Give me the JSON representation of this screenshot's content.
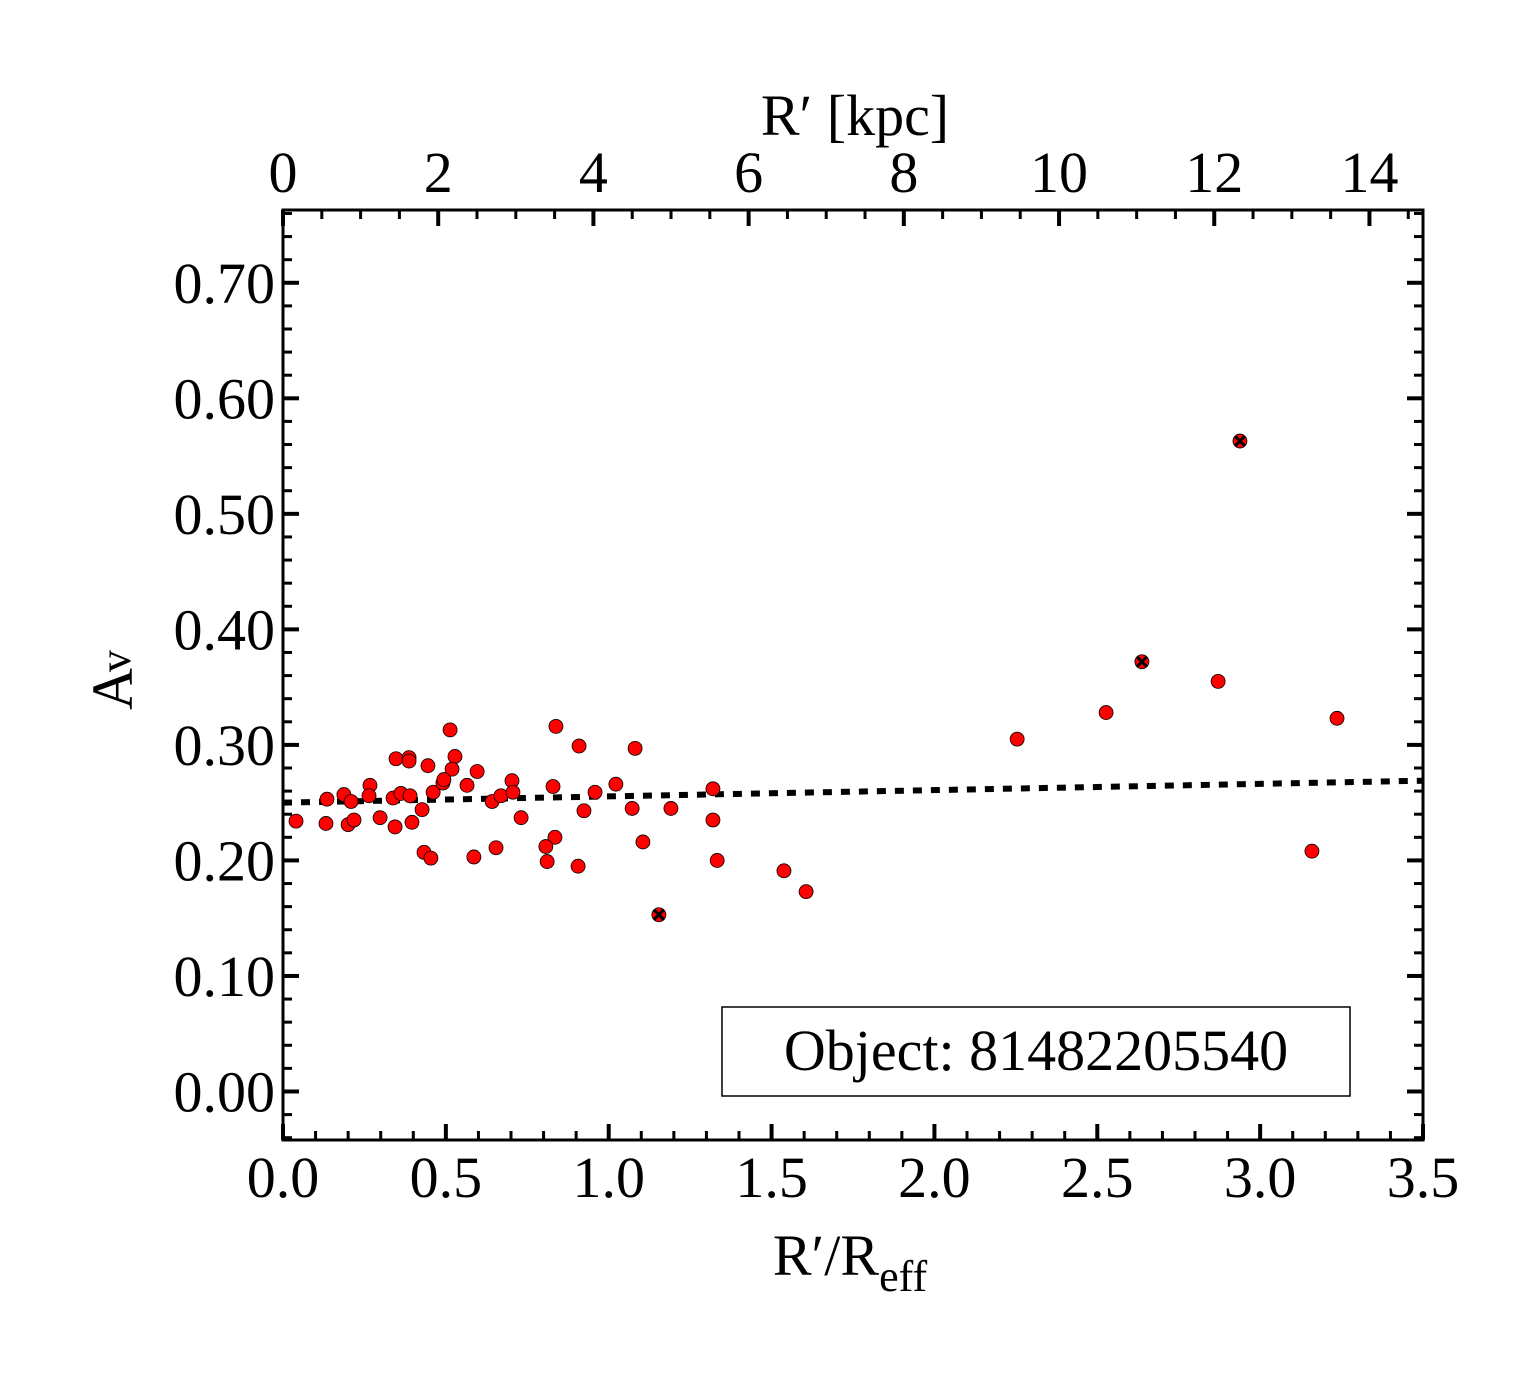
{
  "chart_data": {
    "type": "scatter",
    "xlabel": "R′/R",
    "xlabel_sub": "eff",
    "ylabel": "A",
    "ylabel_sub": "v",
    "top_xlabel": "R′ [kpc]",
    "xlim": [
      0.0,
      3.5
    ],
    "ylim": [
      -0.042,
      0.763
    ],
    "top_xlim": [
      0,
      14.69
    ],
    "x_ticks": [
      "0.0",
      "0.5",
      "1.0",
      "1.5",
      "2.0",
      "2.5",
      "3.0",
      "3.5"
    ],
    "x_tick_values": [
      0,
      0.5,
      1.0,
      1.5,
      2.0,
      2.5,
      3.0,
      3.5
    ],
    "y_ticks": [
      "0.00",
      "0.10",
      "0.20",
      "0.30",
      "0.40",
      "0.50",
      "0.60",
      "0.70"
    ],
    "y_tick_values": [
      0,
      0.1,
      0.2,
      0.3,
      0.4,
      0.5,
      0.6,
      0.7
    ],
    "top_x_ticks": [
      "0",
      "2",
      "4",
      "6",
      "8",
      "10",
      "12",
      "14"
    ],
    "top_x_tick_values": [
      0,
      2,
      4,
      6,
      8,
      10,
      12,
      14
    ],
    "grid": false,
    "annotation": "Object: 81482205540",
    "annotation_position": "bottom-right",
    "point_color": "#ff0000",
    "points": [
      [
        0.04,
        0.234
      ],
      [
        0.135,
        0.253
      ],
      [
        0.132,
        0.232
      ],
      [
        0.187,
        0.257
      ],
      [
        0.209,
        0.251
      ],
      [
        0.2,
        0.231
      ],
      [
        0.218,
        0.235
      ],
      [
        0.267,
        0.265
      ],
      [
        0.264,
        0.256
      ],
      [
        0.298,
        0.237
      ],
      [
        0.347,
        0.288
      ],
      [
        0.387,
        0.289
      ],
      [
        0.387,
        0.286
      ],
      [
        0.338,
        0.254
      ],
      [
        0.362,
        0.258
      ],
      [
        0.39,
        0.256
      ],
      [
        0.344,
        0.229
      ],
      [
        0.396,
        0.233
      ],
      [
        0.445,
        0.282
      ],
      [
        0.427,
        0.244
      ],
      [
        0.461,
        0.259
      ],
      [
        0.433,
        0.207
      ],
      [
        0.454,
        0.202
      ],
      [
        0.513,
        0.313
      ],
      [
        0.528,
        0.29
      ],
      [
        0.519,
        0.279
      ],
      [
        0.491,
        0.267
      ],
      [
        0.494,
        0.27
      ],
      [
        0.565,
        0.265
      ],
      [
        0.596,
        0.277
      ],
      [
        0.586,
        0.203
      ],
      [
        0.642,
        0.251
      ],
      [
        0.669,
        0.256
      ],
      [
        0.703,
        0.269
      ],
      [
        0.706,
        0.259
      ],
      [
        0.654,
        0.211
      ],
      [
        0.731,
        0.237
      ],
      [
        0.838,
        0.316
      ],
      [
        0.909,
        0.299
      ],
      [
        0.829,
        0.264
      ],
      [
        0.958,
        0.259
      ],
      [
        1.022,
        0.266
      ],
      [
        0.924,
        0.243
      ],
      [
        1.081,
        0.297
      ],
      [
        1.072,
        0.245
      ],
      [
        1.191,
        0.245
      ],
      [
        1.105,
        0.216
      ],
      [
        0.835,
        0.22
      ],
      [
        0.807,
        0.212
      ],
      [
        0.811,
        0.199
      ],
      [
        0.906,
        0.195
      ],
      [
        1.32,
        0.262
      ],
      [
        1.32,
        0.235
      ],
      [
        1.333,
        0.2
      ],
      [
        1.538,
        0.191
      ],
      [
        1.606,
        0.173
      ],
      [
        2.254,
        0.305
      ],
      [
        2.527,
        0.328
      ],
      [
        2.871,
        0.355
      ],
      [
        3.236,
        0.323
      ],
      [
        3.159,
        0.208
      ]
    ],
    "flagged_points": [
      [
        1.154,
        0.153
      ],
      [
        2.637,
        0.372
      ],
      [
        2.938,
        0.563
      ]
    ],
    "fit_line": {
      "style": "dotted",
      "x": [
        0.0,
        3.5
      ],
      "y": [
        0.25,
        0.269
      ]
    }
  }
}
